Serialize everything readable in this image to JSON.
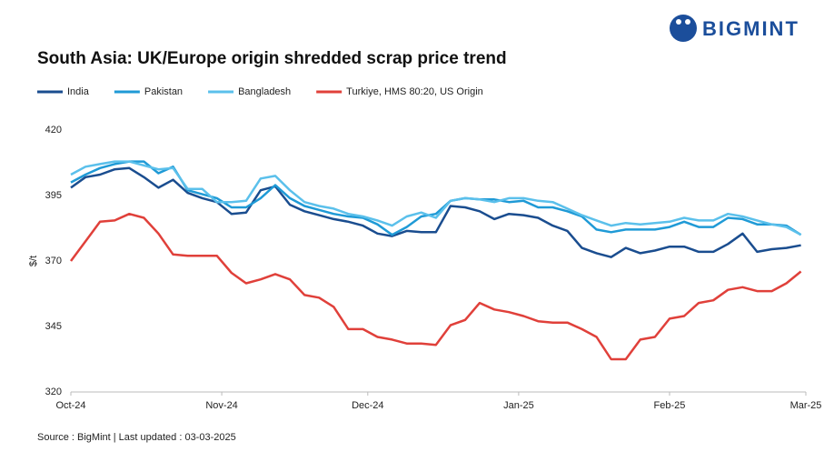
{
  "chart_data": {
    "type": "line",
    "title": "South Asia: UK/Europe origin shredded scrap price trend",
    "brand": "BIGMINT",
    "source": "Source : BigMint | Last updated : 03-03-2025",
    "y_label": "$/t",
    "x": [
      0,
      3,
      6,
      9,
      12,
      15,
      18,
      21,
      24,
      27,
      30,
      33,
      36,
      39,
      42,
      45,
      48,
      51,
      54,
      57,
      60,
      63,
      66,
      69,
      72,
      75,
      78,
      81,
      84,
      87,
      90,
      93,
      96,
      99,
      102,
      105,
      108,
      111,
      114,
      117,
      120,
      123,
      126,
      129,
      132,
      135,
      138,
      141,
      144,
      147,
      150
    ],
    "xlim": [
      0,
      151
    ],
    "xticks": [
      {
        "value": 0,
        "label": "Oct-24"
      },
      {
        "value": 31,
        "label": "Nov-24"
      },
      {
        "value": 61,
        "label": "Dec-24"
      },
      {
        "value": 92,
        "label": "Jan-25"
      },
      {
        "value": 123,
        "label": "Feb-25"
      },
      {
        "value": 151,
        "label": "Mar-25"
      }
    ],
    "ylim": [
      320,
      420
    ],
    "yticks": [
      320,
      345,
      370,
      395,
      420
    ],
    "grid": false,
    "legend": "top",
    "series": [
      {
        "name": "India",
        "color": "#1a4d8f",
        "values": [
          398,
          402,
          403,
          405,
          405.5,
          402,
          398,
          401,
          396,
          394,
          392.5,
          388,
          388.5,
          397,
          398.5,
          391.5,
          389,
          387.5,
          386,
          385,
          383.5,
          380.5,
          379.5,
          381.5,
          381,
          381,
          391,
          390.5,
          389,
          386,
          388,
          387.5,
          386.5,
          383.5,
          381.5,
          375,
          373,
          371.5,
          375,
          373,
          374,
          375.5,
          375.5,
          373.5,
          373.5,
          376.5,
          380.5,
          373.5,
          374.5,
          375,
          376
        ]
      },
      {
        "name": "Pakistan",
        "color": "#1f9ad6",
        "values": [
          400,
          403,
          405.5,
          407,
          408,
          408,
          403.5,
          406,
          397,
          395.5,
          394,
          390.5,
          390.5,
          394,
          399,
          394,
          391,
          389.5,
          388,
          387,
          386.5,
          384,
          380,
          383,
          387,
          388,
          393,
          394,
          393.5,
          393.5,
          392.5,
          393,
          390.5,
          390.5,
          389,
          387,
          382,
          381,
          382,
          382,
          382,
          383,
          385,
          383,
          383,
          386.5,
          386,
          384,
          384,
          383.5,
          380
        ]
      },
      {
        "name": "Bangladesh",
        "color": "#5bc0eb",
        "values": [
          403,
          406,
          407,
          408,
          408,
          406.5,
          405,
          405.5,
          397.5,
          397.5,
          392.5,
          392.5,
          393,
          401.5,
          402.5,
          397,
          392.5,
          391,
          390,
          388,
          387,
          385.5,
          383.5,
          387,
          388.5,
          386.5,
          393,
          394,
          393.5,
          392.5,
          394,
          394,
          393,
          392.5,
          390,
          387.5,
          385.5,
          383.5,
          384.5,
          384,
          384.5,
          385,
          386.5,
          385.5,
          385.5,
          388,
          387,
          385.5,
          384,
          383,
          380
        ]
      },
      {
        "name": "Turkiye, HMS 80:20, US Origin",
        "color": "#e0403a",
        "values": [
          370,
          377.5,
          385,
          385.5,
          388,
          386.5,
          380.5,
          372.5,
          372,
          372,
          372,
          365.5,
          361.5,
          363,
          365,
          363,
          357,
          356,
          352.5,
          344,
          344,
          341,
          340,
          338.5,
          338.5,
          338,
          345.5,
          347.5,
          354,
          351.5,
          350.5,
          349,
          347,
          346.5,
          346.5,
          344,
          341,
          332.5,
          332.5,
          340,
          341,
          348,
          349,
          354,
          355,
          359,
          360,
          358.5,
          358.5,
          361.5,
          366
        ]
      }
    ]
  }
}
